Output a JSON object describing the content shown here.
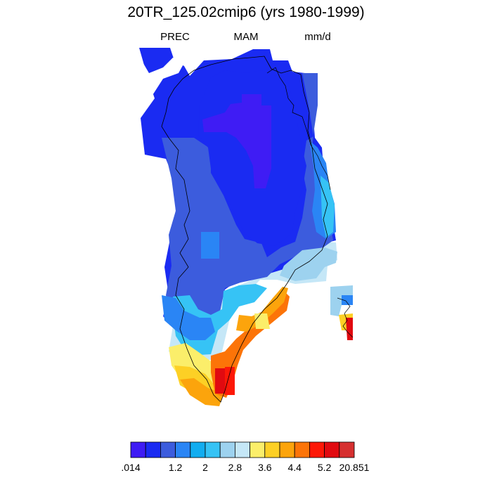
{
  "title": "20TR_125.02cmip6 (yrs 1980-1999)",
  "subtitle": {
    "left": "PREC",
    "center": "MAM",
    "right": "mm/d"
  },
  "colorbar": {
    "colors": [
      "#3f1cf4",
      "#1a2bf2",
      "#3c5cdd",
      "#2a85f5",
      "#12adf0",
      "#36c3f5",
      "#9dd2ef",
      "#c5e7f7",
      "#fbee6a",
      "#fdd025",
      "#fca40c",
      "#fc7408",
      "#fd1807",
      "#e10a10",
      "#d63030"
    ],
    "tick_labels": [
      ".014",
      "1.2",
      "2",
      "2.8",
      "3.6",
      "4.4",
      "5.2",
      "20.851"
    ]
  }
}
